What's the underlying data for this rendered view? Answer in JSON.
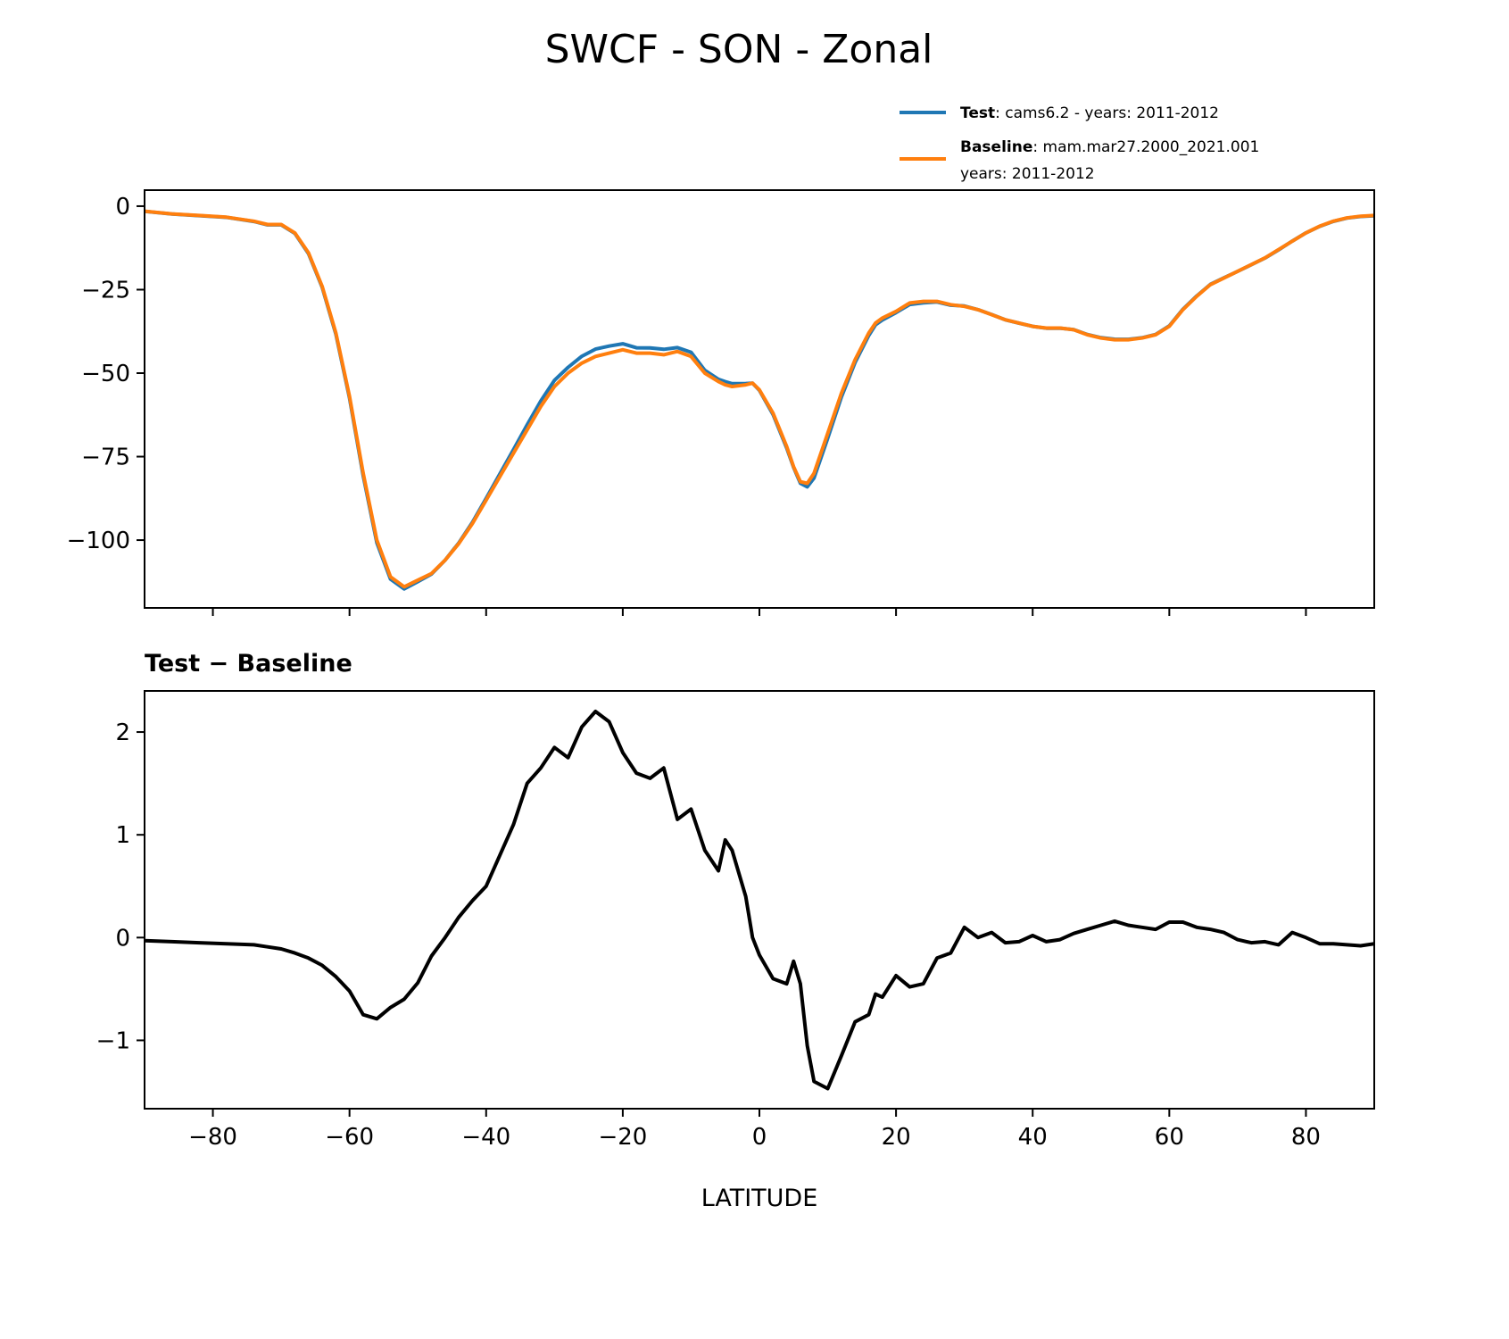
{
  "title": "SWCF - SON - Zonal",
  "legend": {
    "test_label": "Test",
    "test_text": ": cams6.2 - years: 2011-2012",
    "baseline_label": "Baseline",
    "baseline_text": ": mam.mar27.2000_2021.001",
    "baseline_text2": "years: 2011-2012",
    "placement": "upper-right, above top panel"
  },
  "colors": {
    "test": "#1f77b4",
    "baseline": "#ff7f0e",
    "difference": "#000000"
  },
  "chart_data": [
    {
      "type": "line",
      "title": "",
      "xlabel": "",
      "ylabel": "",
      "xlim": [
        -90,
        90
      ],
      "ylim": [
        -120.3,
        4.8
      ],
      "grid": false,
      "xticks": [
        -80,
        -60,
        -40,
        -20,
        0,
        20,
        40,
        60,
        80
      ],
      "xtick_labels_shown": false,
      "yticks": [
        0,
        -25,
        -50,
        -75,
        -100
      ],
      "ytick_labels": [
        "0",
        "−25",
        "−50",
        "−75",
        "−100"
      ],
      "x": [
        -90,
        -86,
        -82,
        -78,
        -74,
        -72,
        -70,
        -68,
        -66,
        -64,
        -62,
        -60,
        -58,
        -56,
        -54,
        -52,
        -50,
        -48,
        -46,
        -44,
        -42,
        -40,
        -38,
        -36,
        -34,
        -32,
        -30,
        -28,
        -26,
        -24,
        -22,
        -20,
        -18,
        -16,
        -14,
        -12,
        -10,
        -8,
        -6,
        -5,
        -4,
        -2,
        -1,
        0,
        2,
        4,
        5,
        6,
        7,
        8,
        10,
        12,
        14,
        16,
        17,
        18,
        20,
        22,
        24,
        26,
        28,
        30,
        32,
        34,
        36,
        38,
        40,
        42,
        44,
        46,
        48,
        50,
        52,
        54,
        56,
        58,
        60,
        62,
        64,
        66,
        68,
        70,
        72,
        74,
        76,
        78,
        80,
        82,
        84,
        86,
        88,
        90
      ],
      "series": [
        {
          "name": "Test",
          "color": "#1f77b4",
          "values": [
            -1.53,
            -2.34,
            -2.85,
            -3.36,
            -4.57,
            -5.59,
            -5.61,
            -8.15,
            -14.2,
            -24.27,
            -38.38,
            -57.52,
            -80.75,
            -100.79,
            -111.68,
            -114.6,
            -112.44,
            -110.18,
            -106,
            -100.8,
            -94.64,
            -87.5,
            -80.2,
            -72.9,
            -65.5,
            -58.35,
            -52.15,
            -48.25,
            -44.95,
            -42.8,
            -41.9,
            -41.2,
            -42.4,
            -42.45,
            -42.85,
            -42.35,
            -43.75,
            -49.15,
            -51.85,
            -52.55,
            -53.15,
            -53.1,
            -53,
            -55.17,
            -62.4,
            -72.45,
            -78.23,
            -82.95,
            -84.05,
            -81.4,
            -69.47,
            -57.15,
            -46.82,
            -38.75,
            -35.55,
            -34.08,
            -31.87,
            -29.48,
            -28.95,
            -28.7,
            -29.65,
            -29.9,
            -31,
            -32.45,
            -34.05,
            -35.04,
            -35.98,
            -36.54,
            -36.52,
            -36.96,
            -38.42,
            -39.38,
            -39.84,
            -39.88,
            -39.4,
            -38.42,
            -35.85,
            -30.85,
            -26.9,
            -23.42,
            -21.45,
            -19.52,
            -17.55,
            -15.54,
            -13.07,
            -10.45,
            -8,
            -6.06,
            -4.56,
            -3.57,
            -3.08,
            -2.86
          ]
        },
        {
          "name": "Baseline",
          "color": "#ff7f0e",
          "values": [
            -1.5,
            -2.3,
            -2.8,
            -3.3,
            -4.5,
            -5.5,
            -5.5,
            -8,
            -14,
            -24,
            -38,
            -57,
            -80,
            -100,
            -111,
            -114,
            -112,
            -110,
            -106,
            -101,
            -95,
            -88,
            -81,
            -74,
            -67,
            -60,
            -54,
            -50,
            -47,
            -45,
            -44,
            -43,
            -44,
            -44,
            -44.5,
            -43.5,
            -45,
            -50,
            -52.5,
            -53.5,
            -54,
            -53.5,
            -53,
            -55,
            -62,
            -72,
            -78,
            -82.5,
            -83,
            -80,
            -68,
            -56,
            -46,
            -38,
            -35,
            -33.5,
            -31.5,
            -29,
            -28.5,
            -28.5,
            -29.5,
            -30,
            -31,
            -32.5,
            -34,
            -35,
            -36,
            -36.5,
            -36.5,
            -37,
            -38.5,
            -39.5,
            -40,
            -40,
            -39.5,
            -38.5,
            -36,
            -31,
            -27,
            -23.5,
            -21.5,
            -19.5,
            -17.5,
            -15.5,
            -13,
            -10.5,
            -8,
            -6,
            -4.5,
            -3.5,
            -3,
            -2.8
          ]
        }
      ]
    },
    {
      "type": "line",
      "title": "Test − Baseline",
      "xlabel": "LATITUDE",
      "ylabel": "",
      "xlim": [
        -90,
        90
      ],
      "ylim": [
        -1.665,
        2.4
      ],
      "grid": false,
      "xticks": [
        -80,
        -60,
        -40,
        -20,
        0,
        20,
        40,
        60,
        80
      ],
      "xtick_labels": [
        "−80",
        "−60",
        "−40",
        "−20",
        "0",
        "20",
        "40",
        "60",
        "80"
      ],
      "yticks": [
        2,
        1,
        0,
        -1
      ],
      "ytick_labels": [
        "2",
        "1",
        "0",
        "−1"
      ],
      "x": [
        -90,
        -86,
        -82,
        -78,
        -74,
        -72,
        -70,
        -68,
        -66,
        -64,
        -62,
        -60,
        -58,
        -56,
        -54,
        -52,
        -50,
        -48,
        -46,
        -44,
        -42,
        -40,
        -38,
        -36,
        -34,
        -32,
        -30,
        -28,
        -26,
        -24,
        -22,
        -20,
        -18,
        -16,
        -14,
        -12,
        -10,
        -8,
        -6,
        -5,
        -4,
        -2,
        -1,
        0,
        2,
        4,
        5,
        6,
        7,
        8,
        10,
        12,
        14,
        16,
        17,
        18,
        20,
        22,
        24,
        26,
        28,
        30,
        32,
        34,
        36,
        38,
        40,
        42,
        44,
        46,
        48,
        50,
        52,
        54,
        56,
        58,
        60,
        62,
        64,
        66,
        68,
        70,
        72,
        74,
        76,
        78,
        80,
        82,
        84,
        86,
        88,
        90
      ],
      "series": [
        {
          "color": "#000000",
          "values": [
            -0.03,
            -0.04,
            -0.05,
            -0.06,
            -0.07,
            -0.09,
            -0.11,
            -0.15,
            -0.2,
            -0.27,
            -0.38,
            -0.52,
            -0.75,
            -0.79,
            -0.68,
            -0.6,
            -0.44,
            -0.18,
            0.0,
            0.2,
            0.36,
            0.5,
            0.8,
            1.1,
            1.5,
            1.65,
            1.85,
            1.75,
            2.05,
            2.2,
            2.1,
            1.8,
            1.6,
            1.55,
            1.65,
            1.15,
            1.25,
            0.85,
            0.65,
            0.95,
            0.85,
            0.4,
            0.0,
            -0.17,
            -0.4,
            -0.45,
            -0.23,
            -0.45,
            -1.05,
            -1.4,
            -1.47,
            -1.15,
            -0.82,
            -0.75,
            -0.55,
            -0.58,
            -0.37,
            -0.48,
            -0.45,
            -0.2,
            -0.15,
            0.1,
            0.0,
            0.05,
            -0.05,
            -0.04,
            0.02,
            -0.04,
            -0.02,
            0.04,
            0.08,
            0.12,
            0.16,
            0.12,
            0.1,
            0.08,
            0.15,
            0.15,
            0.1,
            0.08,
            0.05,
            -0.02,
            -0.05,
            -0.04,
            -0.07,
            0.05,
            0.0,
            -0.06,
            -0.06,
            -0.07,
            -0.08,
            -0.06
          ]
        }
      ]
    }
  ]
}
